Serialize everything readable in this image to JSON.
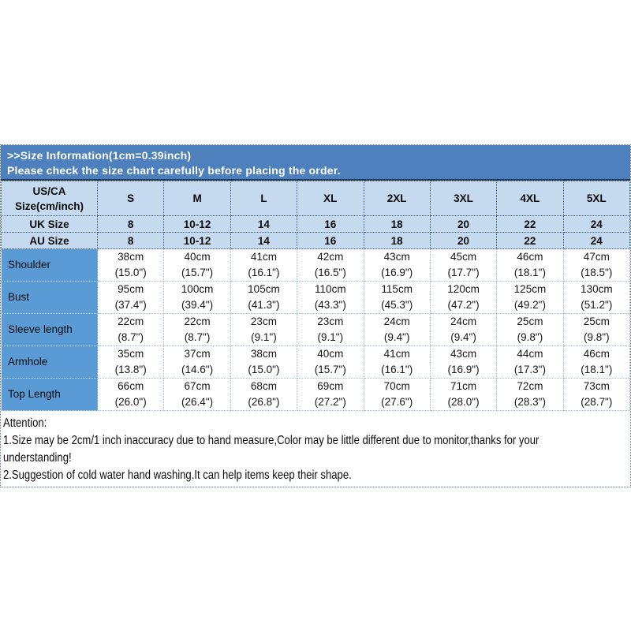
{
  "banner": {
    "line1": ">>Size Information(1cm=0.39inch)",
    "line2": "Please check the size chart carefully before placing the order."
  },
  "table": {
    "corner_header": "US/CA\nSize(cm/inch)",
    "size_headers": [
      "S",
      "M",
      "L",
      "XL",
      "2XL",
      "3XL",
      "4XL",
      "5XL"
    ],
    "region_rows": [
      {
        "label": "UK Size",
        "values": [
          "8",
          "10-12",
          "14",
          "16",
          "18",
          "20",
          "22",
          "24"
        ]
      },
      {
        "label": "AU Size",
        "values": [
          "8",
          "10-12",
          "14",
          "16",
          "18",
          "20",
          "22",
          "24"
        ]
      }
    ],
    "measurement_rows": [
      {
        "label": "Shoulder",
        "values": [
          "38cm\n(15.0\")",
          "40cm\n(15.7\")",
          "41cm\n(16.1\")",
          "42cm\n(16.5\")",
          "43cm\n(16.9\")",
          "45cm\n(17.7\")",
          "46cm\n(18.1\")",
          "47cm\n(18.5\")"
        ]
      },
      {
        "label": "Bust",
        "values": [
          "95cm\n(37.4\")",
          "100cm\n(39.4\")",
          "105cm\n(41.3\")",
          "110cm\n(43.3\")",
          "115cm\n(45.3\")",
          "120cm\n(47.2\")",
          "125cm\n(49.2\")",
          "130cm\n(51.2\")"
        ]
      },
      {
        "label": "Sleeve length",
        "values": [
          "22cm\n(8.7\")",
          "22cm\n(8.7\")",
          "23cm\n(9.1\")",
          "23cm\n(9.1\")",
          "24cm\n(9.4\")",
          "24cm\n(9.4\")",
          "25cm\n(9.8\")",
          "25cm\n(9.8\")"
        ]
      },
      {
        "label": "Armhole",
        "values": [
          "35cm\n(13.8\")",
          "37cm\n(14.6\")",
          "38cm\n(15.0\")",
          "40cm\n(15.7\")",
          "41cm\n(16.1\")",
          "43cm\n(16.9\")",
          "44cm\n(17.3\")",
          "46cm\n(18.1\")"
        ]
      },
      {
        "label": "Top Length",
        "values": [
          "66cm\n(26.0\")",
          "67cm\n(26.4\")",
          "68cm\n(26.8\")",
          "69cm\n(27.2\")",
          "70cm\n(27.6\")",
          "71cm\n(28.0\")",
          "72cm\n(28.3\")",
          "73cm\n(28.7\")"
        ]
      }
    ]
  },
  "attention": {
    "text": "Attention:\n1.Size may be 2cm/1 inch inaccuracy due to hand measure,Color may be little different due to monitor,thanks for your\nunderstanding!\n2.Suggestion of cold water hand washing.It can help items keep their shape."
  },
  "colors": {
    "banner_blue": "#4d80bd",
    "banner_border_navy": "#1e3c64",
    "header_light_blue": "#c5d9ef",
    "label_blue": "#5b9bd5",
    "dotted_border_blue": "#9dbbdc"
  }
}
